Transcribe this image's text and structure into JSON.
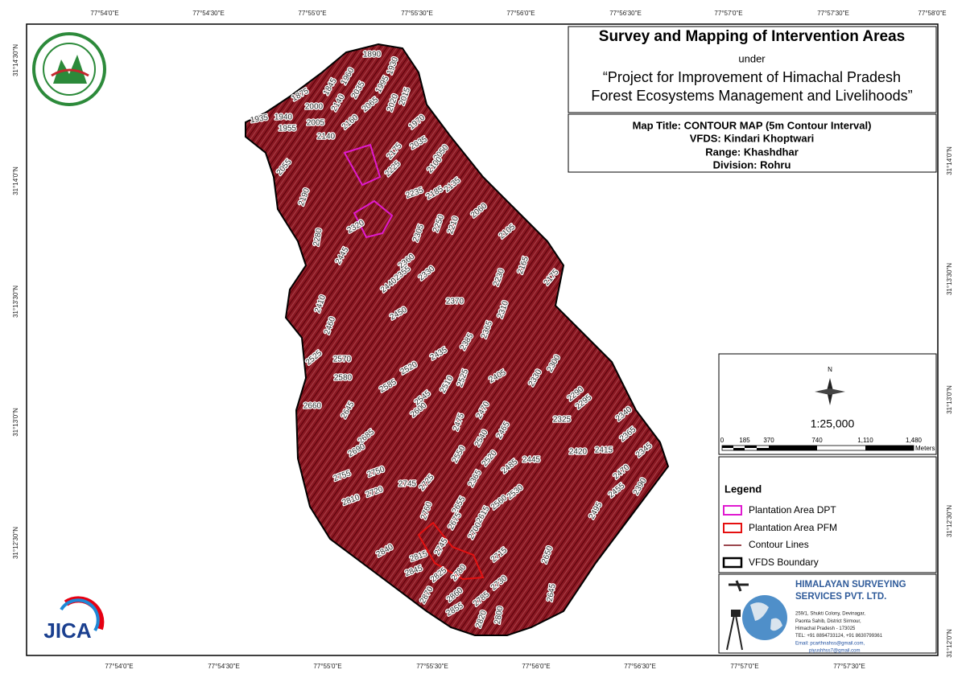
{
  "title_block": {
    "title": "Survey and Mapping of Intervention Areas",
    "under": "under",
    "project": [
      "“Project for Improvement of Himachal Pradesh",
      "Forest Ecosystems Management and Livelihoods”"
    ]
  },
  "map_info": [
    "Map Title: CONTOUR MAP (5m Contour Interval)",
    "VFDS: Kindari Khoptwari",
    "Range: Khashdhar",
    "Division: Rohru"
  ],
  "coordinates": {
    "top": [
      "77°54'0\"E",
      "77°54'30\"E",
      "77°55'0\"E",
      "77°55'30\"E",
      "77°56'0\"E",
      "77°56'30\"E",
      "77°57'0\"E",
      "77°57'30\"E",
      "77°58'0\"E"
    ],
    "bottom": [
      "77°54'0\"E",
      "77°54'30\"E",
      "77°55'0\"E",
      "77°55'30\"E",
      "77°56'0\"E",
      "77°56'30\"E",
      "77°57'0\"E",
      "77°57'30\"E"
    ],
    "left": [
      "31°14'30\"N",
      "31°14'0\"N",
      "31°13'30\"N",
      "31°13'0\"N",
      "31°12'30\"N"
    ],
    "right": [
      "31°14'0\"N",
      "31°13'30\"N",
      "31°13'0\"N",
      "31°12'30\"N",
      "31°12'0\"N"
    ]
  },
  "north": "N",
  "scale": {
    "ratio": "1:25,000",
    "ticks": [
      "0",
      "185",
      "370",
      "740",
      "1,110",
      "1,480"
    ],
    "unit": "Meters"
  },
  "legend": {
    "title": "Legend",
    "items": [
      "Plantation Area DPT",
      "Plantation Area PFM",
      "Contour Lines",
      "VFDS Boundary"
    ]
  },
  "company": {
    "name": [
      "HIMALAYAN SURVEYING",
      "SERVICES PVT. LTD."
    ],
    "address": [
      "259/1, Shukti Colony, Devinagar,",
      "Paonta Sahib, District Sirmour,",
      "Himachal Pradesh - 173025",
      "TEL: +91 8894733124, +91 8630799361",
      "Email: pcarthnahss@gmail.com,",
      "piyushhss7@gmail.com"
    ]
  },
  "jica": "JICA",
  "contour_labels": [
    1890,
    1930,
    1845,
    1960,
    1875,
    2035,
    1995,
    2015,
    2020,
    2000,
    2140,
    2065,
    1940,
    1935,
    1955,
    2005,
    2160,
    1970,
    2140,
    2035,
    2050,
    2175,
    2100,
    2225,
    2135,
    2055,
    2235,
    2185,
    2190,
    2060,
    2320,
    2305,
    2250,
    2210,
    2105,
    2280,
    2445,
    2360,
    2330,
    2355,
    2165,
    2175,
    2230,
    2440,
    2370,
    2310,
    2410,
    2450,
    2460,
    2365,
    2525,
    2570,
    2435,
    2385,
    2300,
    2520,
    2525,
    2405,
    2330,
    2580,
    2510,
    2585,
    2290,
    2295,
    2545,
    2660,
    2600,
    2470,
    2340,
    2325,
    2645,
    2475,
    2465,
    2365,
    2420,
    2415,
    2540,
    2685,
    2345,
    2690,
    2445,
    2550,
    2520,
    2485,
    2470,
    2750,
    2755,
    2365,
    2725,
    2745,
    2530,
    2455,
    2390,
    2720,
    2810,
    2655,
    2560,
    2760,
    2675,
    2615,
    2495,
    2700,
    2745,
    2840,
    2815,
    2780,
    2715,
    2825,
    2650,
    2845,
    2730,
    2870,
    2860,
    2785,
    2645,
    2855,
    2820,
    2800
  ]
}
